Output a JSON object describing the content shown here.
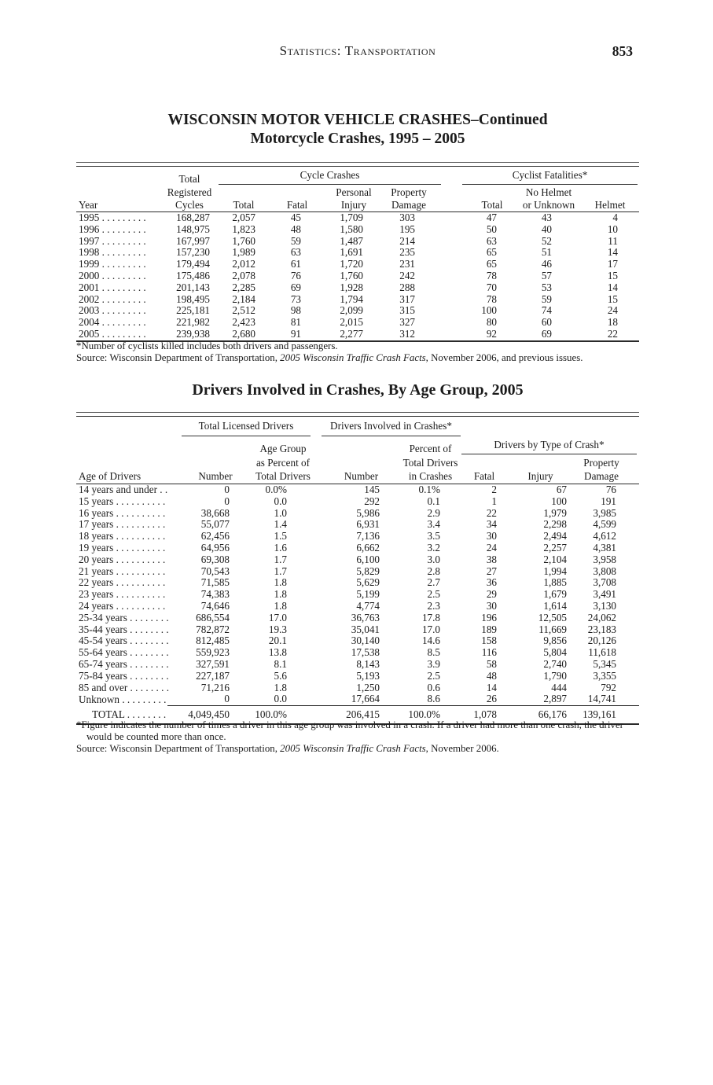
{
  "page": {
    "header": {
      "title": "Statistics: Transportation",
      "page_number": "853"
    }
  },
  "motorcycle_table": {
    "title_line1": "WISCONSIN MOTOR VEHICLE CRASHES–Continued",
    "title_line2": "Motorcycle Crashes, 1995 – 2005",
    "headers": {
      "year": "Year",
      "registered": [
        "Total",
        "Registered",
        "Cycles"
      ],
      "cycle_crashes_group": "Cycle Crashes",
      "cyclist_fatalities_group": "Cyclist Fatalities*",
      "total": "Total",
      "fatal": "Fatal",
      "personal": "Personal",
      "injury": "Injury",
      "property": "Property",
      "damage": "Damage",
      "fatalities_total": "Total",
      "no_helmet": "No Helmet",
      "or_unknown": "or Unknown",
      "helmet": "Helmet"
    },
    "rows": [
      [
        "1995 . . . . . . . . .",
        "168,287",
        "2,057",
        "45",
        "1,709",
        "303",
        "47",
        "43",
        "4"
      ],
      [
        "1996 . . . . . . . . .",
        "148,975",
        "1,823",
        "48",
        "1,580",
        "195",
        "50",
        "40",
        "10"
      ],
      [
        "1997 . . . . . . . . .",
        "167,997",
        "1,760",
        "59",
        "1,487",
        "214",
        "63",
        "52",
        "11"
      ],
      [
        "1998 . . . . . . . . .",
        "157,230",
        "1,989",
        "63",
        "1,691",
        "235",
        "65",
        "51",
        "14"
      ],
      [
        "1999 . . . . . . . . .",
        "179,494",
        "2,012",
        "61",
        "1,720",
        "231",
        "65",
        "46",
        "17"
      ],
      [
        "2000 . . . . . . . . .",
        "175,486",
        "2,078",
        "76",
        "1,760",
        "242",
        "78",
        "57",
        "15"
      ],
      [
        "2001 . . . . . . . . .",
        "201,143",
        "2,285",
        "69",
        "1,928",
        "288",
        "70",
        "53",
        "14"
      ],
      [
        "2002 . . . . . . . . .",
        "198,495",
        "2,184",
        "73",
        "1,794",
        "317",
        "78",
        "59",
        "15"
      ],
      [
        "2003 . . . . . . . . .",
        "225,181",
        "2,512",
        "98",
        "2,099",
        "315",
        "100",
        "74",
        "24"
      ],
      [
        "2004 . . . . . . . . .",
        "221,982",
        "2,423",
        "81",
        "2,015",
        "327",
        "80",
        "60",
        "18"
      ],
      [
        "2005 . . . . . . . . .",
        "239,938",
        "2,680",
        "91",
        "2,277",
        "312",
        "92",
        "69",
        "22"
      ]
    ],
    "footnote": "*Number of cyclists killed includes both drivers and passengers.",
    "source_prefix": "Source: Wisconsin Department of Transportation, ",
    "source_italic": "2005 Wisconsin Traffic Crash Facts",
    "source_suffix": ", November 2006, and previous issues."
  },
  "age_table": {
    "title": "Drivers Involved in Crashes, By Age Group, 2005",
    "headers": {
      "age_of_drivers": "Age of Drivers",
      "licensed_group": "Total Licensed Drivers",
      "involved_group": "Drivers Involved in Crashes*",
      "type_group": "Drivers by Type of Crash*",
      "number": "Number",
      "age_group_line1": "Age Group",
      "age_group_line2": "as Percent of",
      "age_group_line3": "Total Drivers",
      "percent_line1": "Percent of",
      "percent_line2": "Total Drivers",
      "percent_line3": "in Crashes",
      "number2": "Number",
      "fatal": "Fatal",
      "injury": "Injury",
      "property": "Property",
      "damage": "Damage"
    },
    "rows": [
      [
        "14 years and under . .",
        "0",
        "0.0%",
        "145",
        "0.1%",
        "2",
        "67",
        "76"
      ],
      [
        "15 years . . . . . . . . . .",
        "0",
        "0.0",
        "292",
        "0.1",
        "1",
        "100",
        "191"
      ],
      [
        "16 years . . . . . . . . . .",
        "38,668",
        "1.0",
        "5,986",
        "2.9",
        "22",
        "1,979",
        "3,985"
      ],
      [
        "17 years . . . . . . . . . .",
        "55,077",
        "1.4",
        "6,931",
        "3.4",
        "34",
        "2,298",
        "4,599"
      ],
      [
        "18 years . . . . . . . . . .",
        "62,456",
        "1.5",
        "7,136",
        "3.5",
        "30",
        "2,494",
        "4,612"
      ],
      [
        "19 years . . . . . . . . . .",
        "64,956",
        "1.6",
        "6,662",
        "3.2",
        "24",
        "2,257",
        "4,381"
      ],
      [
        "20 years . . . . . . . . . .",
        "69,308",
        "1.7",
        "6,100",
        "3.0",
        "38",
        "2,104",
        "3,958"
      ],
      [
        "21 years . . . . . . . . . .",
        "70,543",
        "1.7",
        "5,829",
        "2.8",
        "27",
        "1,994",
        "3,808"
      ],
      [
        "22 years . . . . . . . . . .",
        "71,585",
        "1.8",
        "5,629",
        "2.7",
        "36",
        "1,885",
        "3,708"
      ],
      [
        "23 years . . . . . . . . . .",
        "74,383",
        "1.8",
        "5,199",
        "2.5",
        "29",
        "1,679",
        "3,491"
      ],
      [
        "24 years . . . . . . . . . .",
        "74,646",
        "1.8",
        "4,774",
        "2.3",
        "30",
        "1,614",
        "3,130"
      ],
      [
        "25-34 years . . . . . . . .",
        "686,554",
        "17.0",
        "36,763",
        "17.8",
        "196",
        "12,505",
        "24,062"
      ],
      [
        "35-44 years . . . . . . . .",
        "782,872",
        "19.3",
        "35,041",
        "17.0",
        "189",
        "11,669",
        "23,183"
      ],
      [
        "45-54 years . . . . . . . .",
        "812,485",
        "20.1",
        "30,140",
        "14.6",
        "158",
        "9,856",
        "20,126"
      ],
      [
        "55-64 years . . . . . . . .",
        "559,923",
        "13.8",
        "17,538",
        "8.5",
        "116",
        "5,804",
        "11,618"
      ],
      [
        "65-74 years . . . . . . . .",
        "327,591",
        "8.1",
        "8,143",
        "3.9",
        "58",
        "2,740",
        "5,345"
      ],
      [
        "75-84 years . . . . . . . .",
        "227,187",
        "5.6",
        "5,193",
        "2.5",
        "48",
        "1,790",
        "3,355"
      ],
      [
        "85 and over . . . . . . . .",
        "71,216",
        "1.8",
        "1,250",
        "0.6",
        "14",
        "444",
        "792"
      ],
      [
        "Unknown . . . . . . . . .",
        "0",
        "0.0",
        "17,664",
        "8.6",
        "26",
        "2,897",
        "14,741"
      ]
    ],
    "total_row": [
      [
        "TOTAL . . . . . . . .",
        "4,049,450",
        "100.0%",
        "206,415",
        "100.0%",
        "1,078",
        "66,176",
        "139,161"
      ]
    ],
    "footnote": "*Figure indicates the number of times a driver in this age group was involved in a crash. If a driver had more than one crash, the driver would be counted more than once.",
    "source_prefix": "Source: Wisconsin Department of Transportation, ",
    "source_italic": "2005 Wisconsin Traffic Crash Facts",
    "source_suffix": ", November 2006."
  }
}
